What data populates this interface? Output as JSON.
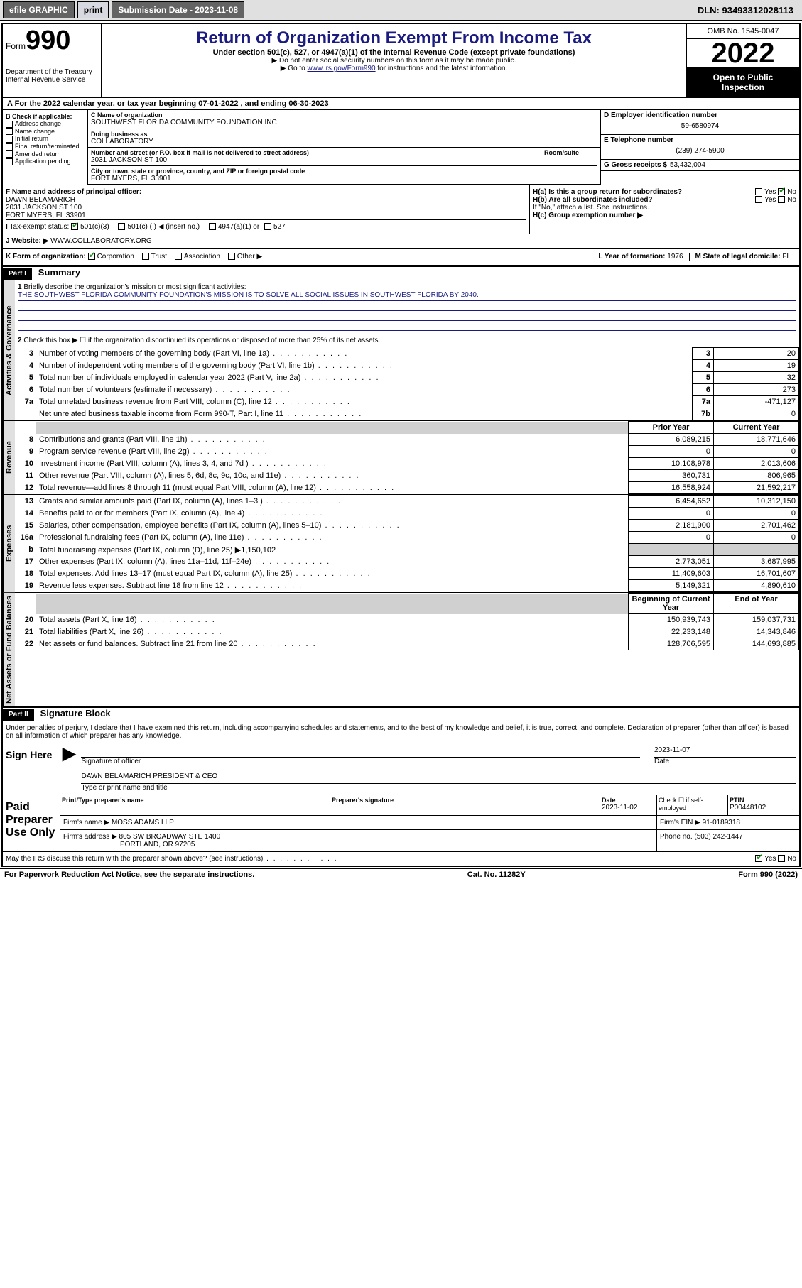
{
  "topbar": {
    "efile": "efile GRAPHIC",
    "print": "print",
    "submission_label": "Submission Date - 2023-11-08",
    "dln": "DLN: 93493312028113"
  },
  "header": {
    "form_word": "Form",
    "form_num": "990",
    "dept": "Department of the Treasury\nInternal Revenue Service",
    "title": "Return of Organization Exempt From Income Tax",
    "sub": "Under section 501(c), 527, or 4947(a)(1) of the Internal Revenue Code (except private foundations)",
    "note1": "Do not enter social security numbers on this form as it may be made public.",
    "note2_prefix": "Go to ",
    "note2_link": "www.irs.gov/Form990",
    "note2_suffix": " for instructions and the latest information.",
    "omb": "OMB No. 1545-0047",
    "year": "2022",
    "open": "Open to Public Inspection"
  },
  "period": {
    "line_a": "For the 2022 calendar year, or tax year beginning 07-01-2022 , and ending 06-30-2023",
    "b_label": "B Check if applicable:",
    "b_opts": [
      "Address change",
      "Name change",
      "Initial return",
      "Final return/terminated",
      "Amended return",
      "Application pending"
    ],
    "c_name_label": "C Name of organization",
    "c_name": "SOUTHWEST FLORIDA COMMUNITY FOUNDATION INC",
    "dba_label": "Doing business as",
    "dba": "COLLABORATORY",
    "street_label": "Number and street (or P.O. box if mail is not delivered to street address)",
    "room_label": "Room/suite",
    "street": "2031 JACKSON ST 100",
    "city_label": "City or town, state or province, country, and ZIP or foreign postal code",
    "city": "FORT MYERS, FL  33901",
    "d_label": "D Employer identification number",
    "d_val": "59-6580974",
    "e_label": "E Telephone number",
    "e_val": "(239) 274-5900",
    "g_label": "G Gross receipts $",
    "g_val": "53,432,004",
    "f_label": "F Name and address of principal officer:",
    "f_name": "DAWN BELAMARICH",
    "f_addr1": "2031 JACKSON ST 100",
    "f_addr2": "FORT MYERS, FL  33901",
    "ha_label": "H(a) Is this a group return for subordinates?",
    "hb_label": "H(b) Are all subordinates included?",
    "hb_note": "If \"No,\" attach a list. See instructions.",
    "hc_label": "H(c) Group exemption number ▶",
    "yes": "Yes",
    "no": "No",
    "tax_status_label": "Tax-exempt status:",
    "status_501c3": "501(c)(3)",
    "status_501c": "501(c) ( ) ◀ (insert no.)",
    "status_4947": "4947(a)(1) or",
    "status_527": "527",
    "website_label": "Website: ▶",
    "website": "WWW.COLLABORATORY.ORG",
    "k_label": "K Form of organization:",
    "k_corp": "Corporation",
    "k_trust": "Trust",
    "k_assoc": "Association",
    "k_other": "Other ▶",
    "l_label": "L Year of formation:",
    "l_val": "1976",
    "m_label": "M State of legal domicile:",
    "m_val": "FL",
    "i_label": "I",
    "j_label": "J"
  },
  "part1": {
    "hdr": "Part I",
    "title": "Summary",
    "q1_label": "Briefly describe the organization's mission or most significant activities:",
    "q1_val": "THE SOUTHWEST FLORIDA COMMUNITY FOUNDATION'S MISSION IS TO SOLVE ALL SOCIAL ISSUES IN SOUTHWEST FLORIDA BY 2040.",
    "q2": "Check this box ▶ ☐ if the organization discontinued its operations or disposed of more than 25% of its net assets.",
    "sections": {
      "gov": "Activities & Governance",
      "rev": "Revenue",
      "exp": "Expenses",
      "net": "Net Assets or Fund Balances"
    },
    "rows_gov": [
      {
        "n": "3",
        "t": "Number of voting members of the governing body (Part VI, line 1a)",
        "box": "3",
        "v": "20"
      },
      {
        "n": "4",
        "t": "Number of independent voting members of the governing body (Part VI, line 1b)",
        "box": "4",
        "v": "19"
      },
      {
        "n": "5",
        "t": "Total number of individuals employed in calendar year 2022 (Part V, line 2a)",
        "box": "5",
        "v": "32"
      },
      {
        "n": "6",
        "t": "Total number of volunteers (estimate if necessary)",
        "box": "6",
        "v": "273"
      },
      {
        "n": "7a",
        "t": "Total unrelated business revenue from Part VIII, column (C), line 12",
        "box": "7a",
        "v": "-471,127"
      },
      {
        "n": "",
        "t": "Net unrelated business taxable income from Form 990-T, Part I, line 11",
        "box": "7b",
        "v": "0"
      }
    ],
    "col_prior": "Prior Year",
    "col_current": "Current Year",
    "rows_rev": [
      {
        "n": "8",
        "t": "Contributions and grants (Part VIII, line 1h)",
        "p": "6,089,215",
        "c": "18,771,646"
      },
      {
        "n": "9",
        "t": "Program service revenue (Part VIII, line 2g)",
        "p": "0",
        "c": "0"
      },
      {
        "n": "10",
        "t": "Investment income (Part VIII, column (A), lines 3, 4, and 7d )",
        "p": "10,108,978",
        "c": "2,013,606"
      },
      {
        "n": "11",
        "t": "Other revenue (Part VIII, column (A), lines 5, 6d, 8c, 9c, 10c, and 11e)",
        "p": "360,731",
        "c": "806,965"
      },
      {
        "n": "12",
        "t": "Total revenue—add lines 8 through 11 (must equal Part VIII, column (A), line 12)",
        "p": "16,558,924",
        "c": "21,592,217"
      }
    ],
    "rows_exp": [
      {
        "n": "13",
        "t": "Grants and similar amounts paid (Part IX, column (A), lines 1–3 )",
        "p": "6,454,652",
        "c": "10,312,150"
      },
      {
        "n": "14",
        "t": "Benefits paid to or for members (Part IX, column (A), line 4)",
        "p": "0",
        "c": "0"
      },
      {
        "n": "15",
        "t": "Salaries, other compensation, employee benefits (Part IX, column (A), lines 5–10)",
        "p": "2,181,900",
        "c": "2,701,462"
      },
      {
        "n": "16a",
        "t": "Professional fundraising fees (Part IX, column (A), line 11e)",
        "p": "0",
        "c": "0"
      },
      {
        "n": "b",
        "t": "Total fundraising expenses (Part IX, column (D), line 25) ▶1,150,102",
        "p": "",
        "c": "",
        "shade": true
      },
      {
        "n": "17",
        "t": "Other expenses (Part IX, column (A), lines 11a–11d, 11f–24e)",
        "p": "2,773,051",
        "c": "3,687,995"
      },
      {
        "n": "18",
        "t": "Total expenses. Add lines 13–17 (must equal Part IX, column (A), line 25)",
        "p": "11,409,603",
        "c": "16,701,607"
      },
      {
        "n": "19",
        "t": "Revenue less expenses. Subtract line 18 from line 12",
        "p": "5,149,321",
        "c": "4,890,610"
      }
    ],
    "col_begin": "Beginning of Current Year",
    "col_end": "End of Year",
    "rows_net": [
      {
        "n": "20",
        "t": "Total assets (Part X, line 16)",
        "p": "150,939,743",
        "c": "159,037,731"
      },
      {
        "n": "21",
        "t": "Total liabilities (Part X, line 26)",
        "p": "22,233,148",
        "c": "14,343,846"
      },
      {
        "n": "22",
        "t": "Net assets or fund balances. Subtract line 21 from line 20",
        "p": "128,706,595",
        "c": "144,693,885"
      }
    ]
  },
  "part2": {
    "hdr": "Part II",
    "title": "Signature Block",
    "decl": "Under penalties of perjury, I declare that I have examined this return, including accompanying schedules and statements, and to the best of my knowledge and belief, it is true, correct, and complete. Declaration of preparer (other than officer) is based on all information of which preparer has any knowledge.",
    "sign_here": "Sign Here",
    "sig_officer": "Signature of officer",
    "sig_date": "Date",
    "sig_date_val": "2023-11-07",
    "officer_name": "DAWN BELAMARICH PRESIDENT & CEO",
    "officer_name_sub": "Type or print name and title",
    "paid_label": "Paid Preparer Use Only",
    "prep_name_label": "Print/Type preparer's name",
    "prep_sig_label": "Preparer's signature",
    "prep_date_label": "Date",
    "prep_date_val": "2023-11-02",
    "check_self": "Check ☐ if self-employed",
    "ptin_label": "PTIN",
    "ptin_val": "P00448102",
    "firm_name_label": "Firm's name ▶",
    "firm_name": "MOSS ADAMS LLP",
    "firm_ein_label": "Firm's EIN ▶",
    "firm_ein": "91-0189318",
    "firm_addr_label": "Firm's address ▶",
    "firm_addr": "805 SW BROADWAY STE 1400",
    "firm_city": "PORTLAND, OR  97205",
    "phone_label": "Phone no.",
    "phone_val": "(503) 242-1447",
    "may_irs": "May the IRS discuss this return with the preparer shown above? (see instructions)"
  },
  "footer": {
    "left": "For Paperwork Reduction Act Notice, see the separate instructions.",
    "mid": "Cat. No. 11282Y",
    "right": "Form 990 (2022)"
  },
  "colors": {
    "link": "#1a1a80",
    "check": "#1a8a1a"
  }
}
